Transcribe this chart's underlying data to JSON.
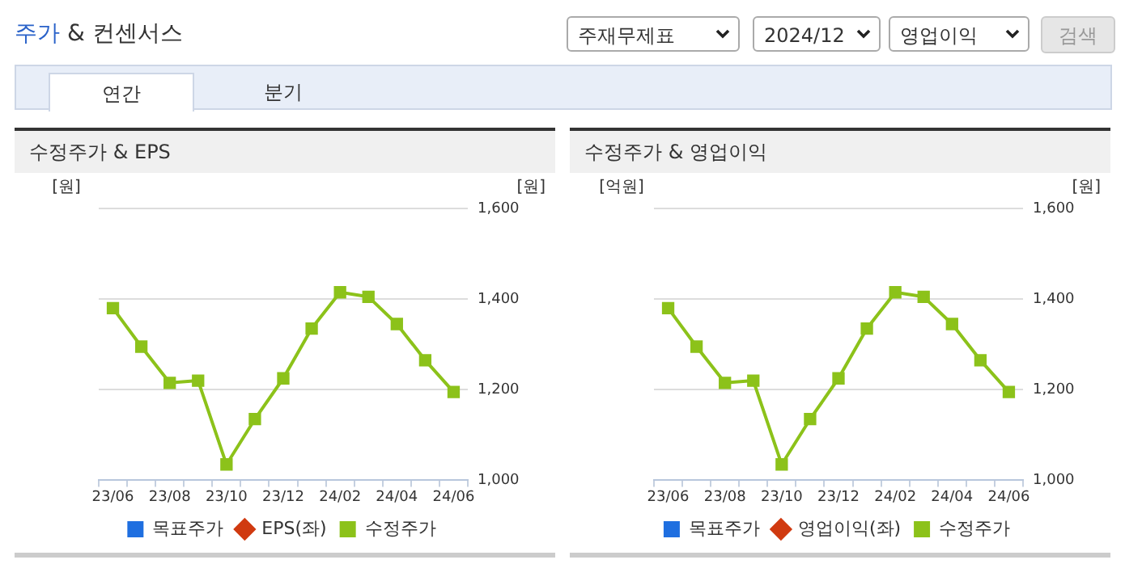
{
  "chart_data": [
    {
      "type": "other",
      "title": "주가 & 컨센서스",
      "annotations": [
        "주재무제표",
        "2024/12",
        "영업이익",
        "검색",
        "연간",
        "분기"
      ]
    },
    {
      "type": "line",
      "title": "수정주가 & EPS",
      "ylabel": "[원]",
      "y2label": "[원]",
      "categories": [
        "23/06",
        null,
        "23/08",
        null,
        "23/10",
        null,
        "23/12",
        null,
        "24/02",
        null,
        "24/04",
        null,
        "24/06"
      ],
      "series": [
        {
          "name": "목표주가",
          "type": "bar",
          "color": "#1f6fe0",
          "values": [
            null,
            null,
            null,
            null,
            null,
            null,
            null,
            null,
            null,
            null,
            null,
            null,
            null
          ]
        },
        {
          "name": "EPS(좌)",
          "type": "line",
          "marker": "diamond",
          "color": "#d03a10",
          "values": [
            null,
            null,
            null,
            null,
            null,
            null,
            null,
            null,
            null,
            null,
            null,
            null,
            null
          ]
        },
        {
          "name": "수정주가",
          "type": "line",
          "marker": "square",
          "axis": "y2",
          "color": "#8cc21a",
          "values": [
            1380,
            1295,
            1215,
            1220,
            1035,
            1135,
            1225,
            1335,
            1415,
            1405,
            1345,
            1265,
            1195
          ]
        }
      ],
      "y2lim": [
        1000,
        1600
      ],
      "y2ticks": [
        {
          "value": 1000,
          "label": "1,000"
        },
        {
          "value": 1200,
          "label": "1,200"
        },
        {
          "value": 1400,
          "label": "1,400"
        },
        {
          "value": 1600,
          "label": "1,600"
        }
      ],
      "grid": "y",
      "legend": "bottom"
    },
    {
      "type": "line",
      "title": "수정주가 & 영업이익",
      "ylabel": "[억원]",
      "y2label": "[원]",
      "categories": [
        "23/06",
        null,
        "23/08",
        null,
        "23/10",
        null,
        "23/12",
        null,
        "24/02",
        null,
        "24/04",
        null,
        "24/06"
      ],
      "series": [
        {
          "name": "목표주가",
          "type": "bar",
          "color": "#1f6fe0",
          "values": [
            null,
            null,
            null,
            null,
            null,
            null,
            null,
            null,
            null,
            null,
            null,
            null,
            null
          ]
        },
        {
          "name": "영업이익(좌)",
          "type": "line",
          "marker": "diamond",
          "color": "#d03a10",
          "values": [
            null,
            null,
            null,
            null,
            null,
            null,
            null,
            null,
            null,
            null,
            null,
            null,
            null
          ]
        },
        {
          "name": "수정주가",
          "type": "line",
          "marker": "square",
          "axis": "y2",
          "color": "#8cc21a",
          "values": [
            1380,
            1295,
            1215,
            1220,
            1035,
            1135,
            1225,
            1335,
            1415,
            1405,
            1345,
            1265,
            1195
          ]
        }
      ],
      "y2lim": [
        1000,
        1600
      ],
      "y2ticks": [
        {
          "value": 1000,
          "label": "1,000"
        },
        {
          "value": 1200,
          "label": "1,200"
        },
        {
          "value": 1400,
          "label": "1,400"
        },
        {
          "value": 1600,
          "label": "1,600"
        }
      ],
      "grid": "y",
      "legend": "bottom"
    }
  ]
}
